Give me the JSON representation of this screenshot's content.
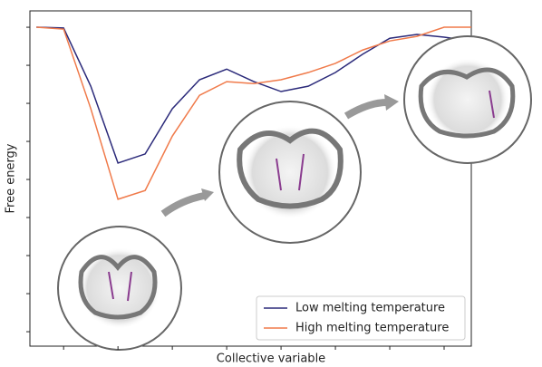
{
  "chart_data": {
    "type": "line",
    "xlabel": "Collective variable",
    "ylabel": "Free energy",
    "x": [
      0.5,
      1,
      1.5,
      2,
      2.5,
      3,
      3.5,
      4,
      4.5,
      5,
      5.5,
      6,
      6.5,
      7,
      7.5,
      8,
      8.5
    ],
    "series": [
      {
        "name": "Low melting temperature",
        "color": "#2b2a7a",
        "values": [
          8,
          7.98,
          6.45,
          4.43,
          4.67,
          5.86,
          6.62,
          6.9,
          6.57,
          6.31,
          6.45,
          6.81,
          7.29,
          7.71,
          7.81,
          7.74,
          7.64
        ]
      },
      {
        "name": "High melting temperature",
        "color": "#f07a4a",
        "values": [
          8,
          7.95,
          5.86,
          3.48,
          3.71,
          5.14,
          6.21,
          6.57,
          6.52,
          6.62,
          6.81,
          7.05,
          7.4,
          7.64,
          7.76,
          8,
          8
        ]
      }
    ],
    "xlim": [
      0.38,
      8.5
    ],
    "ylim": [
      -0.38,
      8.43
    ],
    "xticks": [
      1,
      2,
      3,
      4,
      5,
      6,
      7,
      8
    ],
    "yticks": [
      0,
      1,
      2,
      3,
      4,
      5,
      6,
      7,
      8
    ],
    "legend": "lower right"
  }
}
